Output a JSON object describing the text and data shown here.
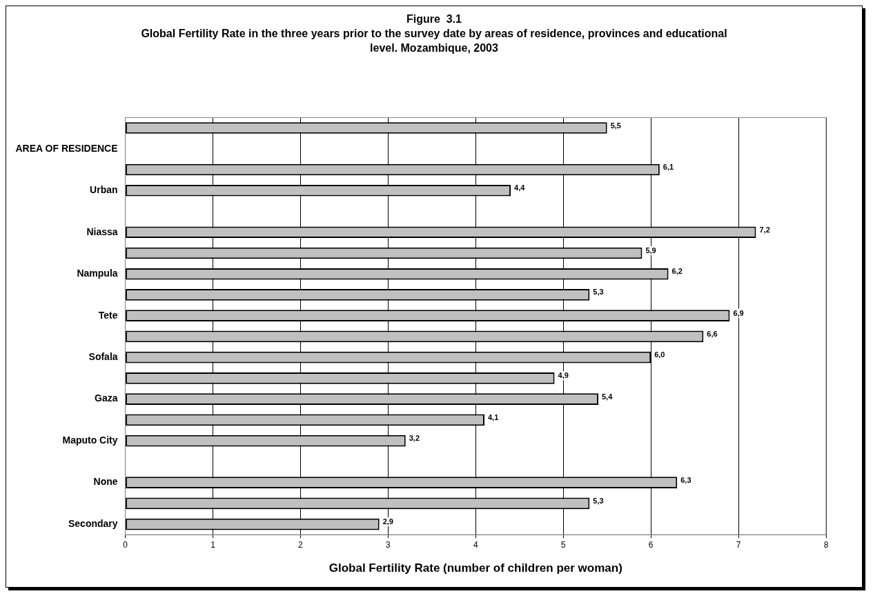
{
  "chart_data": {
    "type": "bar",
    "orientation": "horizontal",
    "title": "Figure  3.1",
    "subtitle": "Global Fertility Rate in the three years prior to the survey date by areas of residence, provinces and educational level. Mozambique, 2003",
    "xlabel": "Global Fertility Rate (number of children per woman)",
    "categories": [
      null,
      "AREA OF RESIDENCE",
      null,
      "Urban",
      null,
      "Niassa",
      null,
      "Nampula",
      null,
      "Tete",
      null,
      "Sofala",
      null,
      "Gaza",
      null,
      "Maputo City",
      null,
      "None",
      null,
      "Secondary"
    ],
    "values": [
      5.5,
      null,
      6.1,
      4.4,
      null,
      7.2,
      5.9,
      6.2,
      5.3,
      6.9,
      6.6,
      6.0,
      4.9,
      5.4,
      4.1,
      3.2,
      null,
      6.3,
      5.3,
      2.9
    ],
    "value_labels": [
      "5,5",
      null,
      "6,1",
      "4,4",
      null,
      "7,2",
      "5,9",
      "6,2",
      "5,3",
      "6,9",
      "6,6",
      "6,0",
      "4,9",
      "5,4",
      "4,1",
      "3,2",
      null,
      "6,3",
      "5,3",
      "2,9"
    ],
    "color": "#c0c0c0",
    "xlim": [
      0,
      8
    ],
    "xticks": [
      0,
      1,
      2,
      3,
      4,
      5,
      6,
      7,
      8
    ],
    "grid": "x",
    "legend": false
  }
}
